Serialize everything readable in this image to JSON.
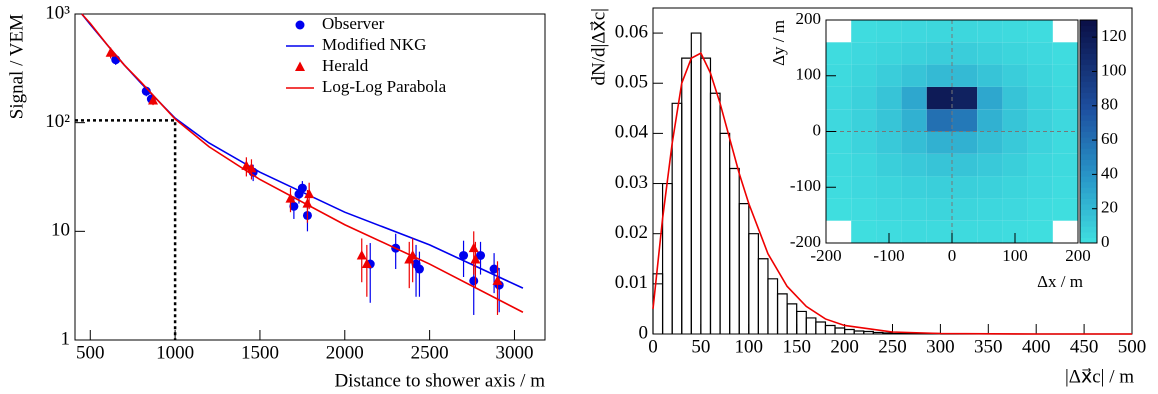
{
  "chart_data": [
    {
      "type": "scatter",
      "log_y": true,
      "legend": "top-center",
      "ylabel": "Signal / VEM",
      "xlabel": "Distance to shower axis / m",
      "xlim": [
        410,
        3180
      ],
      "ylim": [
        1,
        1000
      ],
      "xticks": [
        500,
        1000,
        1500,
        2000,
        2500,
        3000
      ],
      "yticks": [
        1,
        10,
        {
          "value": 100,
          "label": "10²"
        },
        {
          "value": 1000,
          "label": "10³"
        }
      ],
      "reference": {
        "x": 1000,
        "y": 105
      },
      "series": [
        {
          "name": "Observer",
          "color": "#0000ee",
          "marker": "circle",
          "x": [
            650,
            830,
            860,
            1460,
            1700,
            1730,
            1750,
            1780,
            2150,
            2300,
            2420,
            2440,
            2700,
            2760,
            2800,
            2880,
            2910
          ],
          "values": [
            380,
            195,
            165,
            35,
            17,
            22,
            25,
            14,
            5,
            7,
            5,
            4.5,
            6,
            3.5,
            6,
            4.5,
            3.2
          ],
          "errors": [
            40,
            20,
            15,
            6,
            4,
            4,
            4,
            4,
            2.8,
            2.5,
            2.5,
            2,
            2.2,
            1.8,
            2,
            1.8,
            1.4
          ]
        },
        {
          "name": "Modified NKG",
          "color": "#0000ee",
          "marker": "line",
          "x": [
            450,
            500,
            600,
            700,
            800,
            1000,
            1200,
            1500,
            2000,
            2500,
            3050
          ],
          "values": [
            1000,
            800,
            520,
            340,
            230,
            110,
            65,
            35,
            15,
            7.5,
            3
          ]
        },
        {
          "name": "Herald",
          "color": "#ee0000",
          "marker": "triangle",
          "x": [
            620,
            870,
            1420,
            1450,
            1680,
            1780,
            1790,
            2100,
            2130,
            2380,
            2400,
            2760,
            2770,
            2900
          ],
          "values": [
            440,
            160,
            40,
            38,
            20,
            18,
            22,
            6,
            5,
            5.5,
            6,
            7,
            5.5,
            3.5
          ],
          "errors": [
            50,
            15,
            8,
            8,
            5,
            6,
            6,
            2.6,
            2.5,
            2.5,
            2.6,
            3,
            2.5,
            1.8
          ]
        },
        {
          "name": "Log-Log Parabola",
          "color": "#ee0000",
          "marker": "line",
          "x": [
            450,
            500,
            600,
            700,
            800,
            1000,
            1200,
            1500,
            2000,
            2500,
            3050
          ],
          "values": [
            1000,
            820,
            520,
            340,
            235,
            108,
            60,
            30,
            11.5,
            5,
            1.8
          ]
        }
      ]
    },
    {
      "type": "histogram",
      "color": "#000000",
      "ylabel": "dN/d|Δx⃗c|",
      "xlabel": "|Δx⃗c| / m",
      "xlim": [
        0,
        500
      ],
      "ylim": [
        0,
        0.065
      ],
      "xticks": [
        0,
        50,
        100,
        150,
        200,
        250,
        300,
        350,
        400,
        450,
        500
      ],
      "yticks": [
        0,
        0.01,
        0.02,
        0.03,
        0.04,
        0.05,
        0.06
      ],
      "bins": [
        0,
        10,
        20,
        30,
        40,
        50,
        60,
        70,
        80,
        90,
        100,
        110,
        120,
        130,
        140,
        150,
        160,
        170,
        180,
        190,
        200,
        210,
        220,
        230,
        240,
        250,
        260,
        270,
        280,
        290,
        300,
        310,
        320,
        330,
        340,
        350,
        360,
        370,
        380,
        390,
        400,
        410,
        420,
        430,
        440,
        450,
        460,
        470,
        480,
        490,
        500
      ],
      "counts": [
        0.012,
        0.03,
        0.046,
        0.055,
        0.06,
        0.055,
        0.048,
        0.04,
        0.033,
        0.026,
        0.02,
        0.015,
        0.011,
        0.008,
        0.006,
        0.0045,
        0.0032,
        0.0024,
        0.0017,
        0.0012,
        0.0009,
        0.0006,
        0.0005,
        0.0003,
        0.0002,
        0.0001,
        0.0001,
        0.0001,
        0.0001,
        0.0001,
        0,
        0,
        0,
        0,
        0,
        0,
        0,
        0,
        0,
        0,
        0,
        0,
        0,
        0,
        0,
        0,
        0,
        0,
        0,
        0
      ],
      "fit": {
        "color": "#ee0000",
        "x": [
          0,
          5,
          10,
          20,
          30,
          40,
          50,
          60,
          70,
          80,
          90,
          100,
          120,
          140,
          160,
          180,
          200,
          250,
          300,
          400,
          500
        ],
        "values": [
          0.005,
          0.014,
          0.023,
          0.038,
          0.05,
          0.055,
          0.056,
          0.052,
          0.046,
          0.039,
          0.032,
          0.026,
          0.016,
          0.0095,
          0.0055,
          0.003,
          0.0017,
          0.0004,
          0.0001,
          0,
          0
        ]
      },
      "inset": {
        "type": "heatmap",
        "xlabel": "Δx / m",
        "ylabel": "Δy / m",
        "xlim": [
          -200,
          200
        ],
        "ylim": [
          -200,
          200
        ],
        "xticks": [
          -200,
          -100,
          0,
          100,
          200
        ],
        "yticks": [
          -200,
          -100,
          0,
          100,
          200
        ],
        "crosshair": [
          0,
          0
        ],
        "xbins": [
          -200,
          -160,
          -120,
          -80,
          -40,
          0,
          40,
          80,
          120,
          160,
          200
        ],
        "ybins": [
          -200,
          -160,
          -120,
          -80,
          -40,
          0,
          40,
          80,
          120,
          160,
          200
        ],
        "z": [
          [
            0,
            1,
            2,
            3,
            3,
            3,
            3,
            2,
            1,
            0
          ],
          [
            1,
            2,
            4,
            5,
            6,
            6,
            5,
            4,
            2,
            1
          ],
          [
            2,
            4,
            6,
            8,
            9,
            9,
            8,
            6,
            4,
            2
          ],
          [
            3,
            5,
            9,
            12,
            15,
            15,
            12,
            9,
            5,
            3
          ],
          [
            3,
            7,
            12,
            18,
            25,
            25,
            18,
            12,
            7,
            3
          ],
          [
            4,
            8,
            14,
            25,
            60,
            55,
            25,
            14,
            8,
            4
          ],
          [
            4,
            8,
            15,
            30,
            120,
            115,
            30,
            15,
            8,
            4
          ],
          [
            3,
            6,
            10,
            15,
            20,
            20,
            15,
            10,
            6,
            3
          ],
          [
            2,
            4,
            6,
            8,
            10,
            10,
            8,
            6,
            4,
            2
          ],
          [
            0,
            2,
            3,
            4,
            5,
            5,
            4,
            3,
            2,
            0
          ]
        ],
        "zlim": [
          0,
          130
        ],
        "zticks": [
          0,
          20,
          40,
          60,
          80,
          100,
          120
        ]
      }
    }
  ]
}
